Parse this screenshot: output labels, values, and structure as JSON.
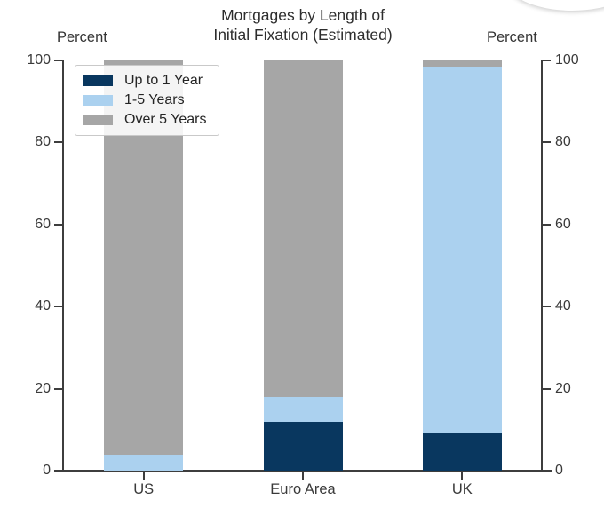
{
  "title": {
    "line1": "Mortgages by Length of",
    "line2": "Initial Fixation (Estimated)"
  },
  "axis": {
    "left_label": "Percent",
    "right_label": "Percent"
  },
  "chart_data": {
    "type": "bar",
    "stacked": true,
    "title": "Mortgages by Length of Initial Fixation (Estimated)",
    "categories": [
      "US",
      "Euro Area",
      "UK"
    ],
    "series": [
      {
        "name": "Up to 1 Year",
        "color": "#09375f",
        "values": [
          0,
          12,
          9
        ]
      },
      {
        "name": "1-5 Years",
        "color": "#abd1ef",
        "values": [
          4,
          6,
          89.5
        ]
      },
      {
        "name": "Over 5 Years",
        "color": "#a6a6a6",
        "values": [
          96,
          82,
          1.5
        ]
      }
    ],
    "ylim": [
      0,
      100
    ],
    "yticks": [
      0,
      20,
      40,
      60,
      80,
      100
    ],
    "ylabel_left": "Percent",
    "ylabel_right": "Percent",
    "xlabel": "",
    "grid": false,
    "legend_position": "upper-left",
    "tick_direction": "out"
  },
  "colors": {
    "axis": "#3d3d3d",
    "text": "#2d2d2d"
  }
}
